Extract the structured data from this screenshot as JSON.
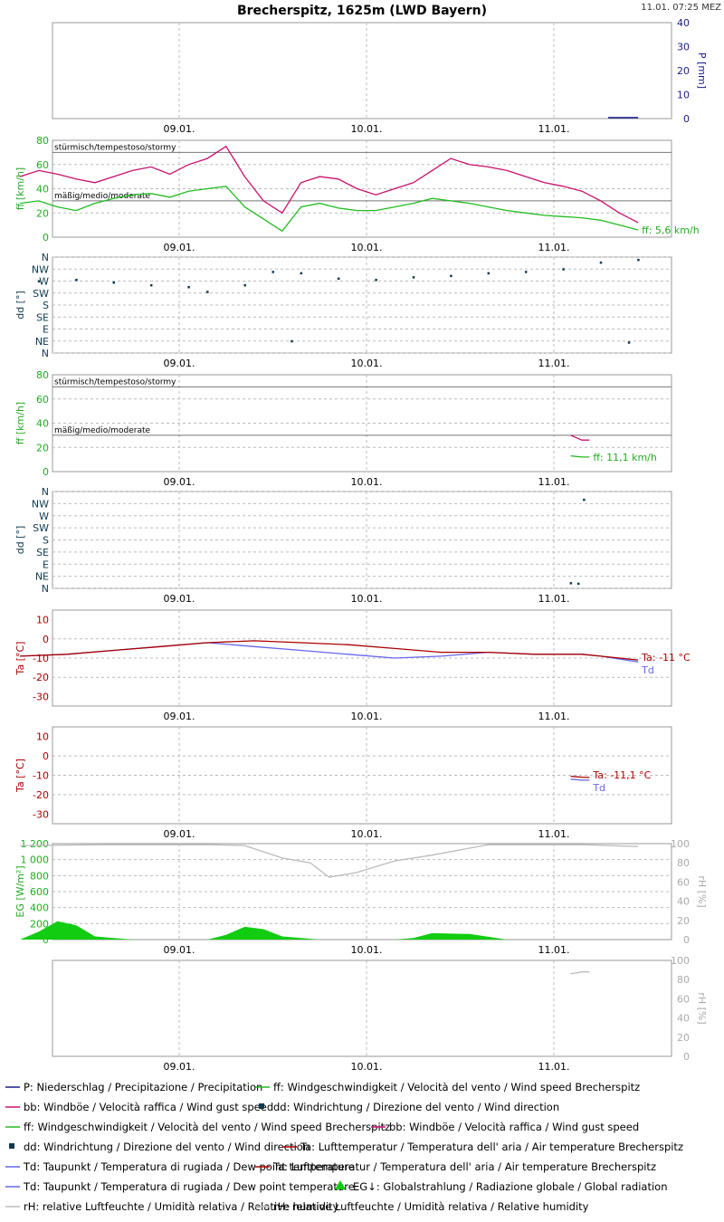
{
  "header": {
    "title": "Brecherspitz, 1625m (LWD Bayern)",
    "timestamp": "11.01. 07:25 MEZ"
  },
  "xaxis": {
    "ticks": [
      "09.01.",
      "10.01.",
      "11.01."
    ]
  },
  "zones": {
    "stormy": "stürmisch/tempestoso/stormy",
    "moderate": "mäßig/medio/moderate"
  },
  "colors": {
    "precip": "#1a1a8c",
    "wind": "#22bb22",
    "gust": "#c8106e",
    "dir": "#0f3a4f",
    "temp": "#aa0000",
    "dew": "#6666ee",
    "rad": "#11cc11",
    "rh": "#bbbbbb",
    "axis_blue": "#1a1a8c",
    "axis_green": "#22aa22",
    "axis_dir": "#0f3a4f",
    "axis_red": "#aa0000",
    "axis_rh": "#aaaaaa"
  },
  "chart_data": [
    {
      "id": "precip",
      "type": "bar",
      "ylabel": "P [mm]",
      "yticks": [
        "0",
        "10",
        "20",
        "30",
        "40"
      ],
      "ylim": [
        0,
        40
      ],
      "series": [
        {
          "name": "P: Niederschlag / Precipitazione / Precipitation",
          "x": [
            3.14,
            3.3
          ],
          "y": [
            0.3,
            0.3
          ]
        }
      ]
    },
    {
      "id": "wind1",
      "type": "line",
      "ylabel": "ff [km/h]",
      "yticks": [
        "0",
        "20",
        "40",
        "60",
        "80"
      ],
      "ylim": [
        0,
        80
      ],
      "value_label": "ff: 5,6 km/h",
      "series": [
        {
          "name": "bb: Windböe / Velocità raffica / Wind gust speed",
          "x": [
            0,
            0.1,
            0.2,
            0.3,
            0.4,
            0.5,
            0.6,
            0.7,
            0.8,
            0.9,
            1.0,
            1.1,
            1.2,
            1.3,
            1.4,
            1.5,
            1.6,
            1.7,
            1.8,
            1.9,
            2.0,
            2.1,
            2.2,
            2.3,
            2.4,
            2.5,
            2.6,
            2.7,
            2.8,
            2.9,
            3.0,
            3.1,
            3.2,
            3.3
          ],
          "y": [
            50,
            55,
            52,
            48,
            45,
            50,
            55,
            58,
            52,
            60,
            65,
            75,
            50,
            30,
            20,
            45,
            50,
            48,
            40,
            35,
            40,
            45,
            55,
            65,
            60,
            58,
            55,
            50,
            45,
            42,
            38,
            30,
            20,
            12
          ]
        },
        {
          "name": "ff: Windgeschwindigkeit / Velocità del vento / Wind speed  Brecherspitz",
          "x": [
            0,
            0.1,
            0.2,
            0.3,
            0.4,
            0.5,
            0.6,
            0.7,
            0.8,
            0.9,
            1.0,
            1.1,
            1.2,
            1.3,
            1.4,
            1.5,
            1.6,
            1.7,
            1.8,
            1.9,
            2.0,
            2.1,
            2.2,
            2.3,
            2.4,
            2.5,
            2.6,
            2.7,
            2.8,
            2.9,
            3.0,
            3.1,
            3.2,
            3.3
          ],
          "y": [
            28,
            30,
            25,
            22,
            28,
            32,
            35,
            36,
            33,
            38,
            40,
            42,
            25,
            15,
            5,
            25,
            28,
            24,
            22,
            22,
            25,
            28,
            32,
            30,
            28,
            25,
            22,
            20,
            18,
            17,
            16,
            14,
            10,
            6
          ]
        }
      ]
    },
    {
      "id": "dir1",
      "type": "scatter",
      "ylabel": "dd [°]",
      "yticks": [
        "N",
        "NW",
        "W",
        "SW",
        "S",
        "SE",
        "E",
        "NE",
        "N"
      ],
      "ylim": [
        0,
        360
      ],
      "series": [
        {
          "name": "dd: Windrichtung / Direzione del vento / Wind direction",
          "x": [
            0.1,
            0.3,
            0.5,
            0.7,
            0.9,
            1.0,
            1.2,
            1.35,
            1.5,
            1.7,
            1.9,
            2.1,
            2.3,
            2.5,
            2.7,
            2.9,
            3.1,
            3.3,
            1.45,
            3.25
          ],
          "y": [
            270,
            275,
            265,
            255,
            248,
            230,
            255,
            305,
            300,
            280,
            275,
            285,
            290,
            300,
            305,
            315,
            340,
            350,
            45,
            40
          ]
        }
      ]
    },
    {
      "id": "wind2",
      "type": "line",
      "ylabel": "ff [km/h]",
      "yticks": [
        "0",
        "20",
        "40",
        "60",
        "80"
      ],
      "ylim": [
        0,
        80
      ],
      "value_label": "ff: 11,1 km/h",
      "series": [
        {
          "name": "bb: Windböe / Velocità raffica / Wind gust speed",
          "x": [
            2.94,
            3.0,
            3.04
          ],
          "y": [
            30,
            26,
            26
          ]
        },
        {
          "name": "ff: Windgeschwindigkeit / Velocità del vento / Wind speed  Brecherspitz",
          "x": [
            2.94,
            3.0,
            3.04
          ],
          "y": [
            13,
            12,
            12
          ]
        }
      ]
    },
    {
      "id": "dir2",
      "type": "scatter",
      "ylabel": "dd [°]",
      "yticks": [
        "N",
        "NW",
        "W",
        "SW",
        "S",
        "SE",
        "E",
        "NE",
        "N"
      ],
      "ylim": [
        0,
        360
      ],
      "series": [
        {
          "name": "dd: Windrichtung / Direzione del vento / Wind direction",
          "x": [
            2.94,
            2.98,
            3.01
          ],
          "y": [
            20,
            18,
            330
          ]
        }
      ]
    },
    {
      "id": "temp1",
      "type": "line",
      "ylabel": "Ta [°C]",
      "yticks": [
        "-30",
        "-20",
        "-10",
        "0",
        "10"
      ],
      "ylim": [
        -35,
        15
      ],
      "value_label": "Ta: -11 °C",
      "dew_label": "Td",
      "series": [
        {
          "name": "Ta: Lufttemperatur / Temperatura dell' aria / Air temperature  Brecherspitz",
          "x": [
            0,
            0.25,
            0.5,
            0.75,
            1.0,
            1.25,
            1.5,
            1.75,
            2.0,
            2.25,
            2.5,
            2.75,
            3.0,
            3.1,
            3.3
          ],
          "y": [
            -9,
            -8,
            -6,
            -4,
            -2,
            -1,
            -2,
            -3,
            -5,
            -7,
            -7,
            -8,
            -8,
            -9,
            -11
          ]
        },
        {
          "name": "Td: Taupunkt / Temperatura di rugiada / Dew point temperature",
          "x": [
            0,
            0.25,
            0.5,
            0.75,
            1.0,
            1.25,
            1.5,
            1.75,
            2.0,
            2.25,
            2.5,
            2.75,
            3.0,
            3.1,
            3.3
          ],
          "y": [
            -9,
            -8,
            -6,
            -4,
            -2,
            -4,
            -6,
            -8,
            -10,
            -9,
            -7,
            -8,
            -8,
            -9,
            -12
          ]
        }
      ]
    },
    {
      "id": "temp2",
      "type": "line",
      "ylabel": "Ta [°C]",
      "yticks": [
        "-30",
        "-20",
        "-10",
        "0",
        "10"
      ],
      "ylim": [
        -35,
        15
      ],
      "value_label": "Ta: -11,1 °C",
      "dew_label": "Td",
      "series": [
        {
          "name": "Ta: Lufttemperatur / Temperatura dell' aria / Air temperature  Brecherspitz",
          "x": [
            2.94,
            3.0,
            3.04
          ],
          "y": [
            -10.5,
            -11,
            -11.1
          ]
        },
        {
          "name": "Td: Taupunkt / Temperatura di rugiada / Dew point temperature",
          "x": [
            2.94,
            3.0,
            3.04
          ],
          "y": [
            -12,
            -12.5,
            -12.5
          ]
        }
      ]
    },
    {
      "id": "rad",
      "type": "area",
      "ylabel": "EG [W/m²]",
      "ylabel_right": "rH [%]",
      "yticks": [
        "0",
        "200",
        "400",
        "600",
        "800",
        "1 000",
        "1 200"
      ],
      "yticks_right": [
        "0",
        "20",
        "40",
        "60",
        "80",
        "100"
      ],
      "ylim": [
        0,
        1200
      ],
      "ylim_right": [
        0,
        100
      ],
      "series": [
        {
          "name": "EG↓: Globalstrahlung / Radiazione globale / Global radiation",
          "x": [
            0.0,
            0.1,
            0.2,
            0.3,
            0.4,
            0.6,
            1.0,
            1.1,
            1.2,
            1.3,
            1.4,
            1.6,
            2.0,
            2.1,
            2.2,
            2.4,
            2.6
          ],
          "y": [
            0,
            100,
            230,
            180,
            40,
            0,
            0,
            60,
            160,
            130,
            40,
            0,
            0,
            20,
            80,
            70,
            0
          ]
        },
        {
          "name": "rH: relative Luftfeuchte / Umidità relativa / Relative humidity",
          "x": [
            0.0,
            0.5,
            1.0,
            1.2,
            1.4,
            1.55,
            1.65,
            1.8,
            2.0,
            2.2,
            2.5,
            3.0,
            3.3
          ],
          "y": [
            98,
            99,
            99,
            98,
            85,
            80,
            65,
            70,
            82,
            88,
            99,
            99,
            97
          ]
        }
      ]
    },
    {
      "id": "rh2",
      "type": "line",
      "ylabel_right": "rH [%]",
      "yticks_right": [
        "0",
        "20",
        "40",
        "60",
        "80",
        "100"
      ],
      "ylim_right": [
        0,
        100
      ],
      "series": [
        {
          "name": "rH: relative Luftfeuchte / Umidità relativa / Relative humidity",
          "x": [
            2.94,
            3.0,
            3.04
          ],
          "y": [
            86,
            88,
            88
          ]
        }
      ]
    }
  ],
  "legend": [
    {
      "kind": "line",
      "color": "precip",
      "text": "P: Niederschlag / Precipitazione / Precipitation"
    },
    {
      "kind": "line",
      "color": "wind",
      "text": "ff: Windgeschwindigkeit / Velocità del vento / Wind speed  Brecherspitz"
    },
    {
      "kind": "line",
      "color": "gust",
      "text": "bb: Windböe / Velocità raffica / Wind gust speed"
    },
    {
      "kind": "square",
      "color": "dir",
      "text": "dd: Windrichtung / Direzione del vento / Wind direction"
    },
    {
      "kind": "line",
      "color": "wind",
      "text": "ff: Windgeschwindigkeit / Velocità del vento / Wind speed  Brecherspitz"
    },
    {
      "kind": "line",
      "color": "gust",
      "text": "bb: Windböe / Velocità raffica / Wind gust speed"
    },
    {
      "kind": "square",
      "color": "dir",
      "text": "dd: Windrichtung / Direzione del vento / Wind direction"
    },
    {
      "kind": "line",
      "color": "temp",
      "text": "Ta: Lufttemperatur / Temperatura dell' aria / Air temperature  Brecherspitz"
    },
    {
      "kind": "line",
      "color": "dew",
      "text": "Td: Taupunkt / Temperatura di rugiada / Dew point temperature"
    },
    {
      "kind": "line",
      "color": "temp",
      "text": "Ta: Lufttemperatur / Temperatura dell' aria / Air temperature  Brecherspitz"
    },
    {
      "kind": "line",
      "color": "dew",
      "text": "Td: Taupunkt / Temperatura di rugiada / Dew point temperature"
    },
    {
      "kind": "blob",
      "color": "rad",
      "text": "EG↓: Globalstrahlung / Radiazione globale / Global radiation"
    },
    {
      "kind": "line",
      "color": "rh",
      "text": "rH: relative Luftfeuchte / Umidità relativa / Relative humidity"
    },
    {
      "kind": "line",
      "color": "rh",
      "text": "rH: relative Luftfeuchte / Umidità relativa / Relative humidity"
    }
  ]
}
